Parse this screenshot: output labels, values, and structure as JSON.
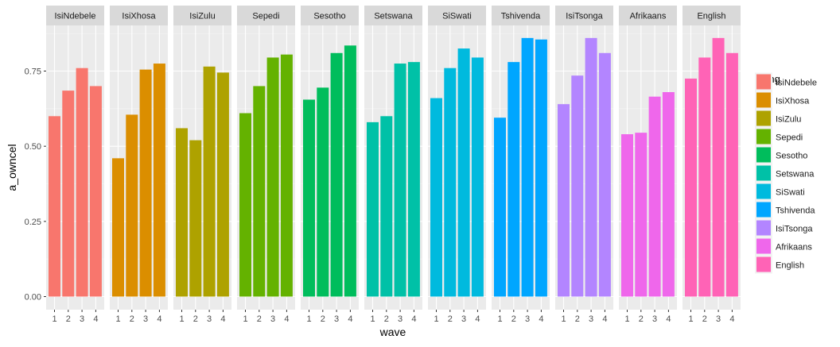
{
  "chart_data": {
    "type": "bar",
    "faceted": true,
    "xlabel": "wave",
    "ylabel": "a_owncel",
    "ylim": [
      0,
      0.88
    ],
    "yticks": [
      0.0,
      0.25,
      0.5,
      0.75
    ],
    "ytick_labels": [
      "0.00",
      "0.25",
      "0.50",
      "0.75"
    ],
    "categories": [
      "1",
      "2",
      "3",
      "4"
    ],
    "legend": {
      "title": "a_lng",
      "position": "right"
    },
    "grid": true,
    "series": [
      {
        "name": "IsiNdebele",
        "color": "#F8766D",
        "values": [
          0.6,
          0.685,
          0.76,
          0.7
        ]
      },
      {
        "name": "IsiXhosa",
        "color": "#DB8E00",
        "values": [
          0.46,
          0.605,
          0.755,
          0.775
        ]
      },
      {
        "name": "IsiZulu",
        "color": "#AEA200",
        "values": [
          0.56,
          0.52,
          0.765,
          0.745
        ]
      },
      {
        "name": "Sepedi",
        "color": "#64B200",
        "values": [
          0.61,
          0.7,
          0.795,
          0.805
        ]
      },
      {
        "name": "Sesotho",
        "color": "#00BD5C",
        "values": [
          0.655,
          0.695,
          0.81,
          0.835
        ]
      },
      {
        "name": "Setswana",
        "color": "#00C1A7",
        "values": [
          0.58,
          0.6,
          0.775,
          0.78
        ]
      },
      {
        "name": "SiSwati",
        "color": "#00BADE",
        "values": [
          0.66,
          0.76,
          0.825,
          0.795
        ]
      },
      {
        "name": "Tshivenda",
        "color": "#00A6FF",
        "values": [
          0.595,
          0.78,
          0.86,
          0.855
        ]
      },
      {
        "name": "IsiTsonga",
        "color": "#B385FF",
        "values": [
          0.64,
          0.735,
          0.86,
          0.81
        ]
      },
      {
        "name": "Afrikaans",
        "color": "#EF67EB",
        "values": [
          0.54,
          0.545,
          0.665,
          0.68
        ]
      },
      {
        "name": "English",
        "color": "#FF63B6",
        "values": [
          0.725,
          0.795,
          0.86,
          0.81
        ]
      }
    ]
  }
}
